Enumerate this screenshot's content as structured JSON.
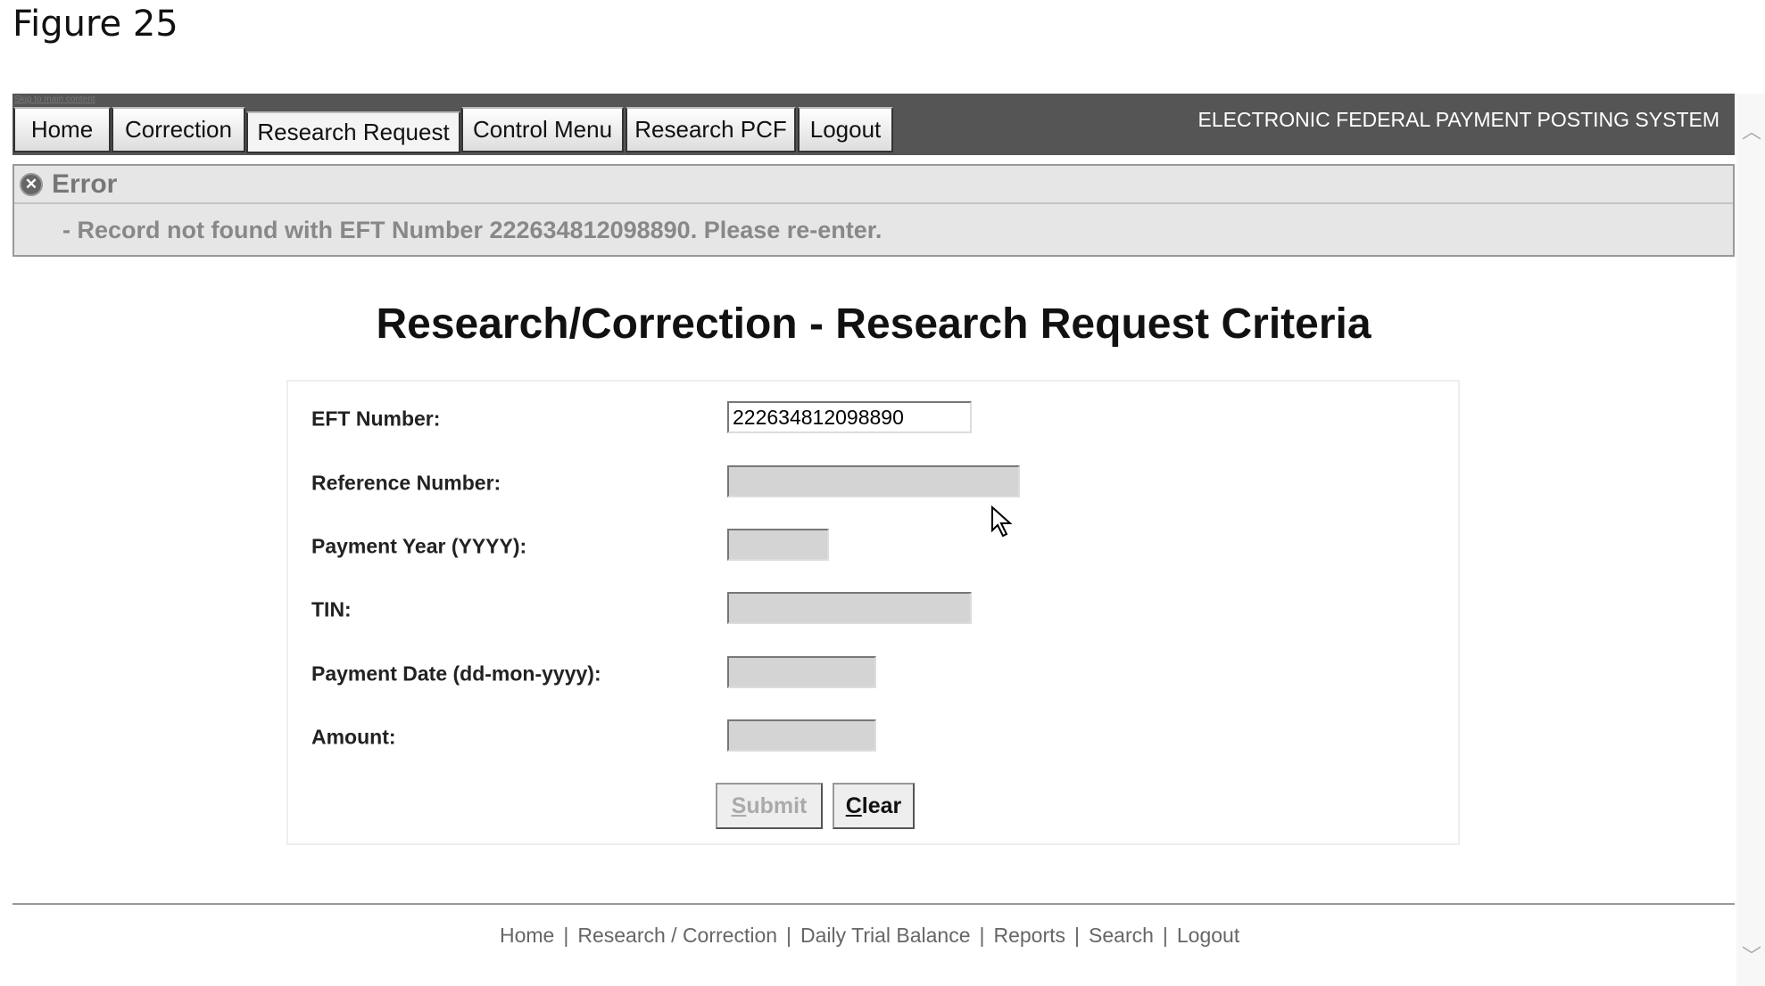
{
  "figure_label": "Figure 25",
  "nav": {
    "skip_link": "Skip to main content",
    "tabs": [
      {
        "label": "Home"
      },
      {
        "label": "Correction"
      },
      {
        "label": "Research Request",
        "active": true
      },
      {
        "label": "Control Menu"
      },
      {
        "label": "Research PCF"
      },
      {
        "label": "Logout"
      }
    ],
    "system_title": "ELECTRONIC FEDERAL PAYMENT POSTING SYSTEM"
  },
  "error": {
    "title": "Error",
    "icon": "error-x-circle-icon",
    "message": "- Record not found with EFT Number 222634812098890. Please re-enter."
  },
  "page_title": "Research/Correction - Research Request Criteria",
  "form": {
    "fields": [
      {
        "label": "EFT Number:",
        "value": "222634812098890"
      },
      {
        "label": "Reference Number:",
        "value": ""
      },
      {
        "label": "Payment Year (YYYY):",
        "value": ""
      },
      {
        "label": "TIN:",
        "value": ""
      },
      {
        "label": "Payment Date (dd-mon-yyyy):",
        "value": ""
      },
      {
        "label": "Amount:",
        "value": ""
      }
    ],
    "submit_first": "S",
    "submit_rest": "ubmit",
    "clear_first": "C",
    "clear_rest": "lear"
  },
  "footer": {
    "links": [
      "Home",
      "Research / Correction",
      "Daily Trial Balance",
      "Reports",
      "Search",
      "Logout"
    ],
    "separator": "|"
  }
}
